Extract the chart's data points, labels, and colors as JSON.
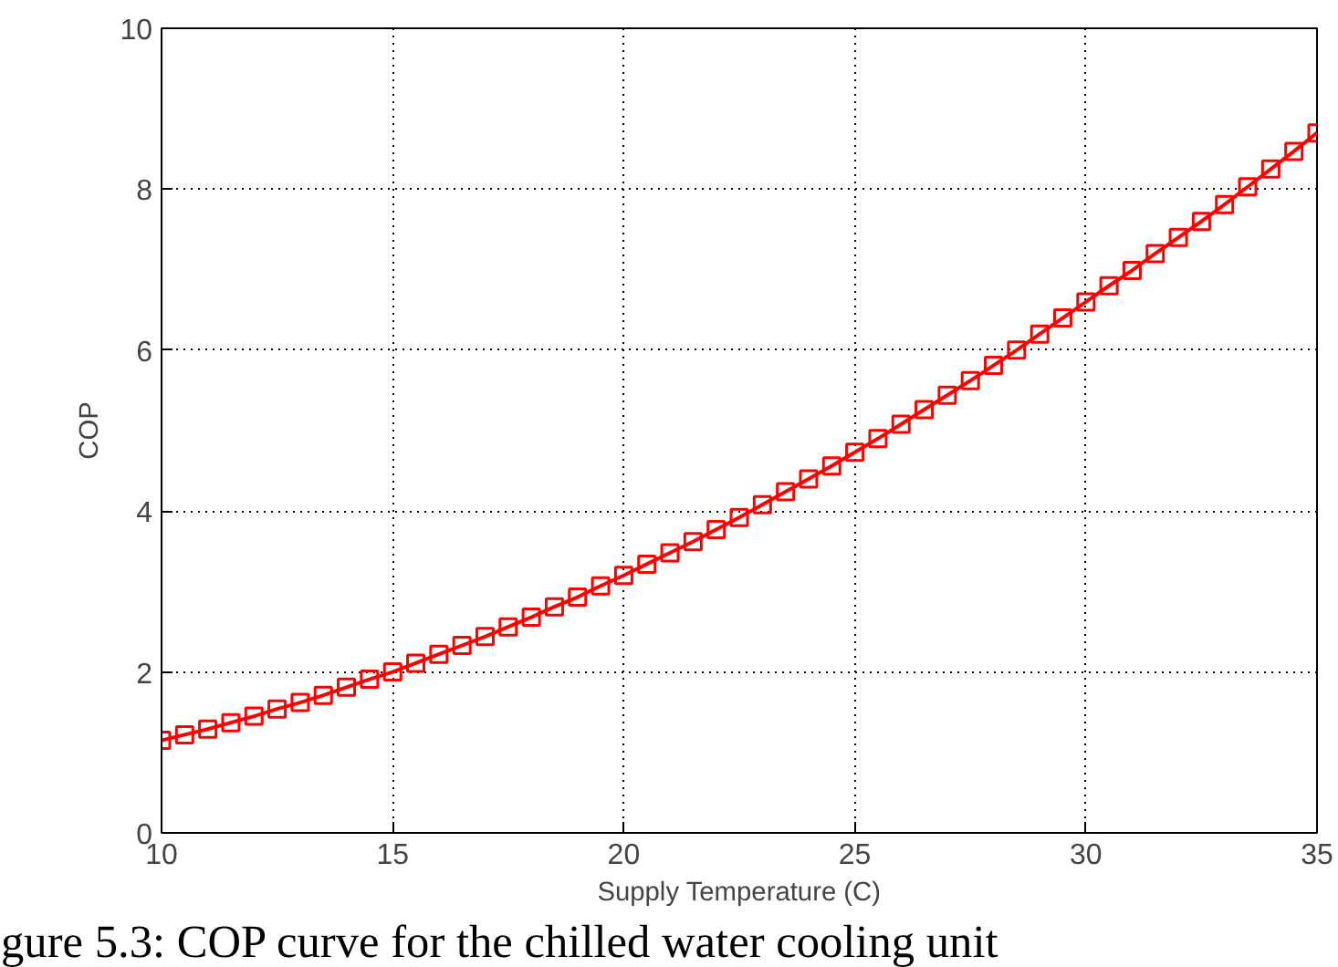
{
  "chart_data": {
    "type": "line",
    "xlabel": "Supply Temperature (C)",
    "ylabel": "COP",
    "x": [
      10,
      10.5,
      11,
      11.5,
      12,
      12.5,
      13,
      13.5,
      14,
      14.5,
      15,
      15.5,
      16,
      16.5,
      17,
      17.5,
      18,
      18.5,
      19,
      19.5,
      20,
      20.5,
      21,
      21.5,
      22,
      22.5,
      23,
      23.5,
      24,
      24.5,
      25,
      25.5,
      26,
      26.5,
      27,
      27.5,
      28,
      28.5,
      29,
      29.5,
      30,
      30.5,
      31,
      31.5,
      32,
      32.5,
      33,
      33.5,
      34,
      34.5,
      35
    ],
    "series": [
      {
        "color": "#ff0000",
        "values": [
          1.15,
          1.22,
          1.29,
          1.37,
          1.45,
          1.54,
          1.62,
          1.71,
          1.81,
          1.91,
          2.0,
          2.11,
          2.22,
          2.33,
          2.44,
          2.56,
          2.68,
          2.81,
          2.93,
          3.07,
          3.2,
          3.34,
          3.48,
          3.62,
          3.77,
          3.92,
          4.08,
          4.24,
          4.4,
          4.56,
          4.73,
          4.9,
          5.08,
          5.26,
          5.44,
          5.62,
          5.81,
          6.0,
          6.2,
          6.4,
          6.6,
          6.8,
          6.99,
          7.2,
          7.4,
          7.6,
          7.81,
          8.03,
          8.25,
          8.47,
          8.7
        ]
      }
    ],
    "marker": "square",
    "line_style": "solid",
    "xlim": [
      10,
      35
    ],
    "ylim": [
      0,
      10
    ],
    "xticks": [
      10,
      15,
      20,
      25,
      30,
      35
    ],
    "yticks": [
      0,
      2,
      4,
      6,
      8,
      10
    ],
    "grid": true,
    "annotations": [
      "gure 5.3: COP curve for the chilled water cooling unit"
    ]
  }
}
